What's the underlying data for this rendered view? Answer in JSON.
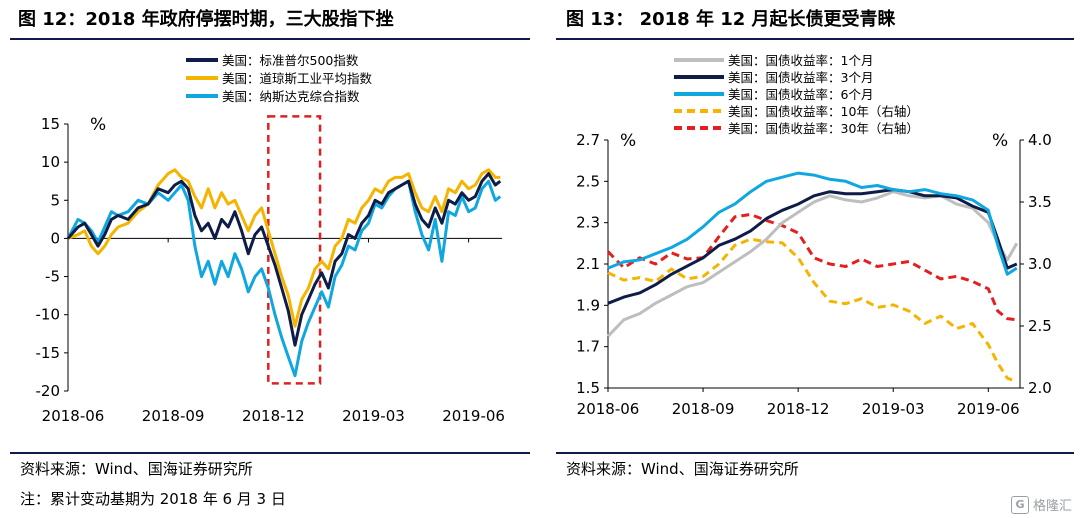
{
  "left_panel": {
    "title": "图 12：2018 年政府停摆时期，三大股指下挫",
    "source": "资料来源：Wind、国海证券研究所"
  },
  "right_panel": {
    "title": "图 13：  2018 年 12 月起长债更受青睐",
    "source": "资料来源：Wind、国海证券研究所"
  },
  "note": "注：累计变动基期为 2018 年 6 月 3 日",
  "watermark": "格隆汇",
  "colors": {
    "navy": "#0d1c48",
    "gold": "#f5b400",
    "cyan": "#10a7e1",
    "gray": "#bebebe",
    "red": "#e41f1f",
    "highlight": "#e02020"
  },
  "chart_data": [
    {
      "type": "line",
      "title": "2018 年政府停摆时期，三大股指下挫",
      "ylabel": "%",
      "ylim": [
        -20,
        15
      ],
      "yticks": [
        "15",
        "10",
        "5",
        "0",
        "-5",
        "-10",
        "-15",
        "-20"
      ],
      "ytick_values": [
        15,
        10,
        5,
        0,
        -5,
        -10,
        -15,
        -20
      ],
      "xlim": [
        0,
        13
      ],
      "xticks": [
        "2018-06",
        "2018-09",
        "2018-12",
        "2019-03",
        "2019-06"
      ],
      "xtick_values": [
        0,
        3,
        6,
        9,
        12
      ],
      "highlight_span": {
        "x": [
          6.0,
          7.55
        ],
        "y": [
          -19,
          16
        ],
        "label": ""
      },
      "legend": [
        "美国：标准普尔500指数",
        "美国：道琼斯工业平均指数",
        "美国：纳斯达克综合指数"
      ],
      "legend_position": "top",
      "series": [
        {
          "name": "美国：标准普尔500指数",
          "color": "navy",
          "x": [
            0,
            0.3,
            0.5,
            0.7,
            0.9,
            1.1,
            1.3,
            1.5,
            1.8,
            2.1,
            2.4,
            2.7,
            3.0,
            3.2,
            3.4,
            3.6,
            3.8,
            4.0,
            4.2,
            4.4,
            4.6,
            4.8,
            5.0,
            5.2,
            5.4,
            5.6,
            5.8,
            6.0,
            6.2,
            6.4,
            6.6,
            6.8,
            7.0,
            7.2,
            7.4,
            7.6,
            7.8,
            8.0,
            8.2,
            8.4,
            8.6,
            8.8,
            9.0,
            9.2,
            9.4,
            9.6,
            9.8,
            10.0,
            10.2,
            10.4,
            10.6,
            10.8,
            11.0,
            11.2,
            11.4,
            11.6,
            11.8,
            12.0,
            12.2,
            12.4,
            12.6,
            12.8,
            12.95
          ],
          "y": [
            0,
            1.5,
            2.0,
            0.5,
            -1.0,
            0.5,
            2.5,
            3.0,
            2.5,
            4.0,
            4.5,
            6.5,
            6.0,
            7.0,
            7.5,
            6.5,
            3.0,
            1.0,
            2.0,
            0.0,
            2.5,
            1.5,
            3.5,
            1.0,
            -2.0,
            0.5,
            1.5,
            -1.0,
            -3.5,
            -6.5,
            -9.5,
            -14.0,
            -10.0,
            -8.0,
            -6.0,
            -4.5,
            -6.5,
            -3.0,
            -2.0,
            0.5,
            0.0,
            2.0,
            3.0,
            5.0,
            4.5,
            6.0,
            6.5,
            7.0,
            7.5,
            4.5,
            2.5,
            1.5,
            4.0,
            2.0,
            5.0,
            4.5,
            6.0,
            5.0,
            5.5,
            7.5,
            8.5,
            7.0,
            7.5
          ]
        },
        {
          "name": "美国：道琼斯工业平均指数",
          "color": "gold",
          "x": [
            0,
            0.3,
            0.5,
            0.7,
            0.9,
            1.1,
            1.3,
            1.5,
            1.8,
            2.1,
            2.4,
            2.7,
            3.0,
            3.2,
            3.4,
            3.6,
            3.8,
            4.0,
            4.2,
            4.4,
            4.6,
            4.8,
            5.0,
            5.2,
            5.4,
            5.6,
            5.8,
            6.0,
            6.2,
            6.4,
            6.6,
            6.8,
            7.0,
            7.2,
            7.4,
            7.6,
            7.8,
            8.0,
            8.2,
            8.4,
            8.6,
            8.8,
            9.0,
            9.2,
            9.4,
            9.6,
            9.8,
            10.0,
            10.2,
            10.4,
            10.6,
            10.8,
            11.0,
            11.2,
            11.4,
            11.6,
            11.8,
            12.0,
            12.2,
            12.4,
            12.6,
            12.8,
            12.95
          ],
          "y": [
            0,
            0.5,
            1.0,
            -1.0,
            -2.0,
            -1.0,
            0.5,
            1.5,
            2.0,
            3.5,
            4.5,
            7.0,
            8.5,
            9.0,
            8.0,
            7.5,
            5.5,
            4.0,
            6.5,
            4.0,
            6.0,
            4.5,
            5.0,
            3.0,
            1.0,
            3.0,
            4.0,
            1.0,
            -2.0,
            -5.0,
            -7.5,
            -11.5,
            -8.0,
            -6.5,
            -4.0,
            -3.0,
            -4.0,
            -1.0,
            0.0,
            2.5,
            2.0,
            4.0,
            5.0,
            6.5,
            6.0,
            7.5,
            8.0,
            8.0,
            8.5,
            6.0,
            4.0,
            3.5,
            5.5,
            3.5,
            6.5,
            6.0,
            7.5,
            6.5,
            7.0,
            8.5,
            9.0,
            8.0,
            8.0
          ]
        },
        {
          "name": "美国：纳斯达克综合指数",
          "color": "cyan",
          "x": [
            0,
            0.3,
            0.5,
            0.7,
            0.9,
            1.1,
            1.3,
            1.5,
            1.8,
            2.1,
            2.4,
            2.7,
            3.0,
            3.2,
            3.4,
            3.6,
            3.8,
            4.0,
            4.2,
            4.4,
            4.6,
            4.8,
            5.0,
            5.2,
            5.4,
            5.6,
            5.8,
            6.0,
            6.2,
            6.4,
            6.6,
            6.8,
            7.0,
            7.2,
            7.4,
            7.6,
            7.8,
            8.0,
            8.2,
            8.4,
            8.6,
            8.8,
            9.0,
            9.2,
            9.4,
            9.6,
            9.8,
            10.0,
            10.2,
            10.4,
            10.6,
            10.8,
            11.0,
            11.2,
            11.4,
            11.6,
            11.8,
            12.0,
            12.2,
            12.4,
            12.6,
            12.8,
            12.95
          ],
          "y": [
            0,
            2.5,
            2.0,
            1.0,
            -0.5,
            1.5,
            3.5,
            3.0,
            3.5,
            5.0,
            4.5,
            6.0,
            5.0,
            6.0,
            7.0,
            5.0,
            -1.0,
            -5.0,
            -3.0,
            -6.0,
            -3.0,
            -5.0,
            -2.0,
            -4.0,
            -7.0,
            -5.0,
            -4.0,
            -6.5,
            -10.0,
            -13.0,
            -15.5,
            -18.0,
            -13.5,
            -11.0,
            -9.0,
            -7.0,
            -9.0,
            -5.0,
            -3.5,
            -1.0,
            -1.5,
            1.0,
            2.0,
            4.5,
            4.0,
            5.5,
            6.5,
            7.0,
            7.5,
            3.5,
            0.5,
            -1.5,
            2.5,
            -3.0,
            3.5,
            3.0,
            5.5,
            3.5,
            4.0,
            6.5,
            7.5,
            5.0,
            5.5
          ]
        }
      ]
    },
    {
      "type": "line",
      "title": "2018 年 12 月起长债更受青睐",
      "ylabel": "%",
      "ylabel_right": "%",
      "ylim": [
        1.5,
        2.7
      ],
      "yticks": [
        "2.7",
        "2.5",
        "2.3",
        "2.1",
        "1.9",
        "1.7",
        "1.5"
      ],
      "ytick_values": [
        2.7,
        2.5,
        2.3,
        2.1,
        1.9,
        1.7,
        1.5
      ],
      "ylim_right": [
        2.0,
        4.0
      ],
      "yticks_right": [
        "4.0",
        "3.5",
        "3.0",
        "2.5",
        "2.0"
      ],
      "ytick_values_right": [
        4.0,
        3.5,
        3.0,
        2.5,
        2.0
      ],
      "xlim": [
        0,
        13
      ],
      "xticks": [
        "2018-06",
        "2018-09",
        "2018-12",
        "2019-03",
        "2019-06"
      ],
      "xtick_values": [
        0,
        3,
        6,
        9,
        12
      ],
      "legend": [
        "美国：国债收益率：1个月",
        "美国：国债收益率：3个月",
        "美国：国债收益率：6个月",
        "美国：国债收益率：10年（右轴）",
        "美国：国债收益率：30年（右轴）"
      ],
      "legend_position": "top",
      "series": [
        {
          "name": "美国：国债收益率：1个月",
          "color": "gray",
          "dash": false,
          "axis": "left",
          "x": [
            0,
            0.5,
            1.0,
            1.5,
            2.0,
            2.5,
            3.0,
            3.5,
            4.0,
            4.5,
            5.0,
            5.5,
            6.0,
            6.5,
            7.0,
            7.5,
            8.0,
            8.5,
            9.0,
            9.5,
            10.0,
            10.5,
            11.0,
            11.5,
            12.0,
            12.3,
            12.6,
            12.9
          ],
          "y": [
            1.75,
            1.83,
            1.86,
            1.91,
            1.95,
            1.99,
            2.01,
            2.06,
            2.11,
            2.16,
            2.22,
            2.3,
            2.35,
            2.4,
            2.43,
            2.41,
            2.4,
            2.42,
            2.45,
            2.43,
            2.42,
            2.43,
            2.39,
            2.37,
            2.3,
            2.2,
            2.12,
            2.2
          ]
        },
        {
          "name": "美国：国债收益率：3个月",
          "color": "navy",
          "dash": false,
          "axis": "left",
          "x": [
            0,
            0.5,
            1.0,
            1.5,
            2.0,
            2.5,
            3.0,
            3.5,
            4.0,
            4.5,
            5.0,
            5.5,
            6.0,
            6.5,
            7.0,
            7.5,
            8.0,
            8.5,
            9.0,
            9.5,
            10.0,
            10.5,
            11.0,
            11.5,
            12.0,
            12.3,
            12.6,
            12.9
          ],
          "y": [
            1.91,
            1.94,
            1.96,
            2.0,
            2.05,
            2.09,
            2.13,
            2.19,
            2.22,
            2.26,
            2.32,
            2.36,
            2.39,
            2.43,
            2.45,
            2.44,
            2.44,
            2.45,
            2.46,
            2.45,
            2.43,
            2.43,
            2.42,
            2.38,
            2.35,
            2.22,
            2.08,
            2.1
          ]
        },
        {
          "name": "美国：国债收益率：6个月",
          "color": "cyan",
          "dash": false,
          "axis": "left",
          "x": [
            0,
            0.5,
            1.0,
            1.5,
            2.0,
            2.5,
            3.0,
            3.5,
            4.0,
            4.5,
            5.0,
            5.5,
            6.0,
            6.5,
            7.0,
            7.5,
            8.0,
            8.5,
            9.0,
            9.5,
            10.0,
            10.5,
            11.0,
            11.5,
            12.0,
            12.3,
            12.6,
            12.9
          ],
          "y": [
            2.08,
            2.11,
            2.12,
            2.15,
            2.18,
            2.22,
            2.28,
            2.35,
            2.39,
            2.45,
            2.5,
            2.52,
            2.54,
            2.53,
            2.51,
            2.5,
            2.47,
            2.48,
            2.46,
            2.45,
            2.46,
            2.44,
            2.43,
            2.41,
            2.36,
            2.19,
            2.05,
            2.08
          ]
        },
        {
          "name": "美国：国债收益率：10年（右轴）",
          "color": "gold",
          "dash": true,
          "axis": "right",
          "x": [
            0,
            0.5,
            1.0,
            1.5,
            2.0,
            2.5,
            3.0,
            3.5,
            4.0,
            4.5,
            5.0,
            5.5,
            6.0,
            6.5,
            7.0,
            7.5,
            8.0,
            8.5,
            9.0,
            9.5,
            10.0,
            10.5,
            11.0,
            11.5,
            12.0,
            12.3,
            12.6,
            12.9
          ],
          "y": [
            2.93,
            2.87,
            2.89,
            2.86,
            2.96,
            2.88,
            2.9,
            3.0,
            3.15,
            3.2,
            3.18,
            3.17,
            3.05,
            2.85,
            2.7,
            2.68,
            2.72,
            2.65,
            2.67,
            2.62,
            2.52,
            2.58,
            2.48,
            2.52,
            2.35,
            2.2,
            2.08,
            2.05
          ]
        },
        {
          "name": "美国：国债收益率：30年（右轴）",
          "color": "red",
          "dash": true,
          "axis": "right",
          "x": [
            0,
            0.5,
            1.0,
            1.5,
            2.0,
            2.5,
            3.0,
            3.5,
            4.0,
            4.5,
            5.0,
            5.5,
            6.0,
            6.5,
            7.0,
            7.5,
            8.0,
            8.5,
            9.0,
            9.5,
            10.0,
            10.5,
            11.0,
            11.5,
            12.0,
            12.3,
            12.6,
            12.9
          ],
          "y": [
            3.1,
            2.97,
            3.05,
            3.0,
            3.09,
            3.04,
            3.05,
            3.22,
            3.38,
            3.4,
            3.35,
            3.31,
            3.25,
            3.05,
            3.0,
            2.98,
            3.04,
            2.98,
            3.0,
            3.02,
            2.95,
            2.88,
            2.9,
            2.86,
            2.8,
            2.62,
            2.56,
            2.55
          ]
        }
      ]
    }
  ]
}
